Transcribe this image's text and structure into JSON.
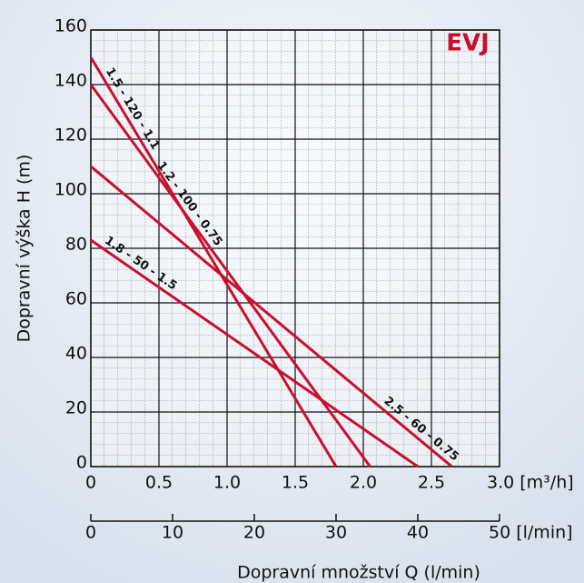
{
  "chart_data": {
    "type": "line",
    "brand": "EVJ",
    "y_label": "Dopravní výška H (m)",
    "x2_label": "Dopravní množství Q (l/min)",
    "xlim": [
      0,
      3
    ],
    "xticks": [
      0,
      0.5,
      {
        "value": 1,
        "label": "1.0"
      },
      1.5,
      {
        "value": 2,
        "label": "2.0"
      },
      2.5,
      {
        "value": 3,
        "label": "3.0 [m³/h]"
      }
    ],
    "x2lim": [
      0,
      50
    ],
    "x2ticks": [
      0,
      10,
      20,
      30,
      40,
      {
        "value": 50,
        "label": "50 [l/min]"
      }
    ],
    "ylim": [
      0,
      160
    ],
    "yticks": [
      0,
      20,
      40,
      60,
      80,
      100,
      120,
      140,
      160
    ],
    "grid": true,
    "series": [
      {
        "name": "1.5 - 120 - 1.1",
        "color": "#c8102e",
        "x": [
          0,
          1.8
        ],
        "values": [
          150,
          0
        ]
      },
      {
        "name": "1.2 - 100 - 0.75",
        "color": "#c8102e",
        "x": [
          0,
          2.05
        ],
        "values": [
          140,
          0
        ]
      },
      {
        "name": "2.5 - 60 - 0.75",
        "color": "#c8102e",
        "x": [
          0,
          2.65
        ],
        "values": [
          110,
          0
        ]
      },
      {
        "name": "1.8 - 50 - 1.5",
        "color": "#c8102e",
        "x": [
          0,
          2.4
        ],
        "values": [
          83,
          0
        ]
      }
    ]
  }
}
